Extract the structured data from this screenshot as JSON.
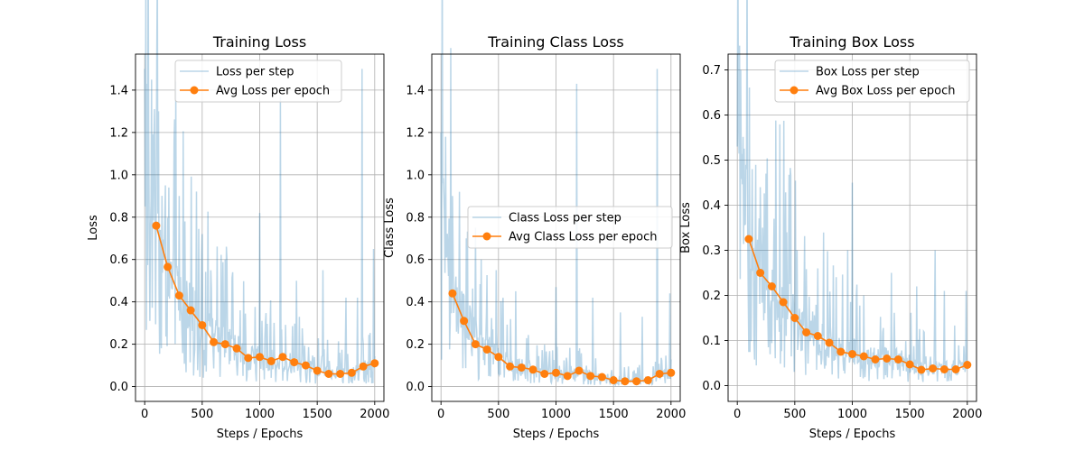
{
  "chart_data": [
    {
      "type": "line",
      "title": "Training Loss",
      "xlabel": "Steps / Epochs",
      "ylabel": "Loss",
      "xlim": [
        -80,
        2080
      ],
      "ylim": [
        -0.07,
        1.57
      ],
      "xticks": [
        "0",
        "500",
        "1000",
        "1500",
        "2000"
      ],
      "xtick_values": [
        0,
        500,
        1000,
        1500,
        2000
      ],
      "yticks": [
        "0.0",
        "0.2",
        "0.4",
        "0.6",
        "0.8",
        "1.0",
        "1.2",
        "1.4"
      ],
      "ytick_values": [
        0.0,
        0.2,
        0.4,
        0.6,
        0.8,
        1.0,
        1.2,
        1.4
      ],
      "grid": true,
      "legend_position": "upper-center",
      "series": [
        {
          "name": "Loss per step",
          "color": "#1f77b4",
          "style": "thin-line-alpha",
          "base_x": [
            0,
            100,
            200,
            300,
            400,
            500,
            600,
            700,
            800,
            900,
            1000,
            1100,
            1200,
            1300,
            1400,
            1500,
            1600,
            1700,
            1800,
            1900,
            2000
          ],
          "base_y": [
            1.0,
            0.75,
            0.55,
            0.42,
            0.34,
            0.28,
            0.22,
            0.2,
            0.17,
            0.14,
            0.13,
            0.12,
            0.12,
            0.11,
            0.1,
            0.08,
            0.07,
            0.07,
            0.07,
            0.09,
            0.1
          ],
          "spikes": [
            [
              0,
              1.5
            ],
            [
              20,
              1.43
            ],
            [
              60,
              1.45
            ],
            [
              120,
              1.3
            ],
            [
              180,
              0.95
            ],
            [
              210,
              0.94
            ],
            [
              300,
              0.9
            ],
            [
              350,
              0.78
            ],
            [
              500,
              0.72
            ],
            [
              700,
              0.6
            ],
            [
              1000,
              0.82
            ],
            [
              1180,
              1.37
            ],
            [
              1320,
              0.5
            ],
            [
              1550,
              0.55
            ],
            [
              1750,
              0.42
            ],
            [
              1850,
              0.42
            ],
            [
              1890,
              1.5
            ],
            [
              1990,
              0.65
            ]
          ]
        },
        {
          "name": "Avg Loss per epoch",
          "color": "#ff7f0e",
          "style": "line-marker",
          "x": [
            100,
            200,
            300,
            400,
            500,
            600,
            700,
            800,
            900,
            1000,
            1100,
            1200,
            1300,
            1400,
            1500,
            1600,
            1700,
            1800,
            1900,
            2000
          ],
          "y": [
            0.76,
            0.565,
            0.43,
            0.36,
            0.29,
            0.21,
            0.2,
            0.18,
            0.135,
            0.14,
            0.12,
            0.14,
            0.115,
            0.1,
            0.075,
            0.06,
            0.06,
            0.065,
            0.095,
            0.11
          ]
        }
      ]
    },
    {
      "type": "line",
      "title": "Training Class Loss",
      "xlabel": "Steps / Epochs",
      "ylabel": "Class Loss",
      "xlim": [
        -80,
        2080
      ],
      "ylim": [
        -0.07,
        1.57
      ],
      "xticks": [
        "0",
        "500",
        "1000",
        "1500",
        "2000"
      ],
      "xtick_values": [
        0,
        500,
        1000,
        1500,
        2000
      ],
      "yticks": [
        "0.0",
        "0.2",
        "0.4",
        "0.6",
        "0.8",
        "1.0",
        "1.2",
        "1.4"
      ],
      "ytick_values": [
        0.0,
        0.2,
        0.4,
        0.6,
        0.8,
        1.0,
        1.2,
        1.4
      ],
      "grid": true,
      "legend_position": "center-right",
      "series": [
        {
          "name": "Class Loss per step",
          "color": "#1f77b4",
          "style": "thin-line-alpha",
          "base_x": [
            0,
            100,
            200,
            300,
            400,
            500,
            600,
            700,
            800,
            900,
            1000,
            1100,
            1200,
            1300,
            1400,
            1500,
            1600,
            1700,
            1800,
            1900,
            2000
          ],
          "base_y": [
            0.8,
            0.45,
            0.31,
            0.22,
            0.17,
            0.14,
            0.1,
            0.09,
            0.08,
            0.06,
            0.06,
            0.05,
            0.07,
            0.05,
            0.04,
            0.03,
            0.03,
            0.03,
            0.03,
            0.05,
            0.06
          ],
          "spikes": [
            [
              0,
              1.2
            ],
            [
              40,
              1.18
            ],
            [
              100,
              0.9
            ],
            [
              160,
              0.92
            ],
            [
              220,
              0.7
            ],
            [
              300,
              0.75
            ],
            [
              350,
              0.6
            ],
            [
              480,
              0.55
            ],
            [
              650,
              0.45
            ],
            [
              1000,
              0.47
            ],
            [
              1180,
              1.43
            ],
            [
              1320,
              0.42
            ],
            [
              1560,
              0.35
            ],
            [
              1750,
              0.33
            ],
            [
              1880,
              1.5
            ],
            [
              1990,
              0.44
            ]
          ]
        },
        {
          "name": "Avg Class Loss per epoch",
          "color": "#ff7f0e",
          "style": "line-marker",
          "x": [
            100,
            200,
            300,
            400,
            500,
            600,
            700,
            800,
            900,
            1000,
            1100,
            1200,
            1300,
            1400,
            1500,
            1600,
            1700,
            1800,
            1900,
            2000
          ],
          "y": [
            0.44,
            0.31,
            0.2,
            0.175,
            0.14,
            0.095,
            0.09,
            0.08,
            0.06,
            0.065,
            0.05,
            0.075,
            0.05,
            0.045,
            0.03,
            0.025,
            0.025,
            0.03,
            0.06,
            0.065
          ]
        }
      ]
    },
    {
      "type": "line",
      "title": "Training Box Loss",
      "xlabel": "Steps / Epochs",
      "ylabel": "Box Loss",
      "xlim": [
        -80,
        2080
      ],
      "ylim": [
        -0.035,
        0.735
      ],
      "xticks": [
        "0",
        "500",
        "1000",
        "1500",
        "2000"
      ],
      "xtick_values": [
        0,
        500,
        1000,
        1500,
        2000
      ],
      "yticks": [
        "0.0",
        "0.1",
        "0.2",
        "0.3",
        "0.4",
        "0.5",
        "0.6",
        "0.7"
      ],
      "ytick_values": [
        0.0,
        0.1,
        0.2,
        0.3,
        0.4,
        0.5,
        0.6,
        0.7
      ],
      "grid": true,
      "legend_position": "upper-right",
      "series": [
        {
          "name": "Box Loss per step",
          "color": "#1f77b4",
          "style": "thin-line-alpha",
          "base_x": [
            0,
            100,
            200,
            300,
            400,
            500,
            600,
            700,
            800,
            900,
            1000,
            1100,
            1200,
            1300,
            1400,
            1500,
            1600,
            1700,
            1800,
            1900,
            2000
          ],
          "base_y": [
            0.45,
            0.32,
            0.25,
            0.22,
            0.18,
            0.15,
            0.12,
            0.11,
            0.095,
            0.08,
            0.075,
            0.065,
            0.06,
            0.06,
            0.058,
            0.05,
            0.04,
            0.04,
            0.04,
            0.04,
            0.045
          ],
          "spikes": [
            [
              0,
              0.53
            ],
            [
              30,
              0.7
            ],
            [
              80,
              0.48
            ],
            [
              130,
              0.48
            ],
            [
              200,
              0.44
            ],
            [
              250,
              0.47
            ],
            [
              320,
              0.37
            ],
            [
              430,
              0.34
            ],
            [
              520,
              0.3
            ],
            [
              700,
              0.26
            ],
            [
              960,
              0.3
            ],
            [
              1000,
              0.45
            ],
            [
              1100,
              0.2
            ],
            [
              1340,
              0.25
            ],
            [
              1560,
              0.22
            ],
            [
              1720,
              0.3
            ],
            [
              1800,
              0.21
            ],
            [
              1990,
              0.21
            ]
          ]
        },
        {
          "name": "Avg Box Loss per epoch",
          "color": "#ff7f0e",
          "style": "line-marker",
          "x": [
            100,
            200,
            300,
            400,
            500,
            600,
            700,
            800,
            900,
            1000,
            1100,
            1200,
            1300,
            1400,
            1500,
            1600,
            1700,
            1800,
            1900,
            2000
          ],
          "y": [
            0.325,
            0.25,
            0.22,
            0.185,
            0.15,
            0.118,
            0.11,
            0.095,
            0.075,
            0.07,
            0.065,
            0.058,
            0.06,
            0.058,
            0.047,
            0.035,
            0.038,
            0.036,
            0.036,
            0.046
          ]
        }
      ]
    }
  ]
}
